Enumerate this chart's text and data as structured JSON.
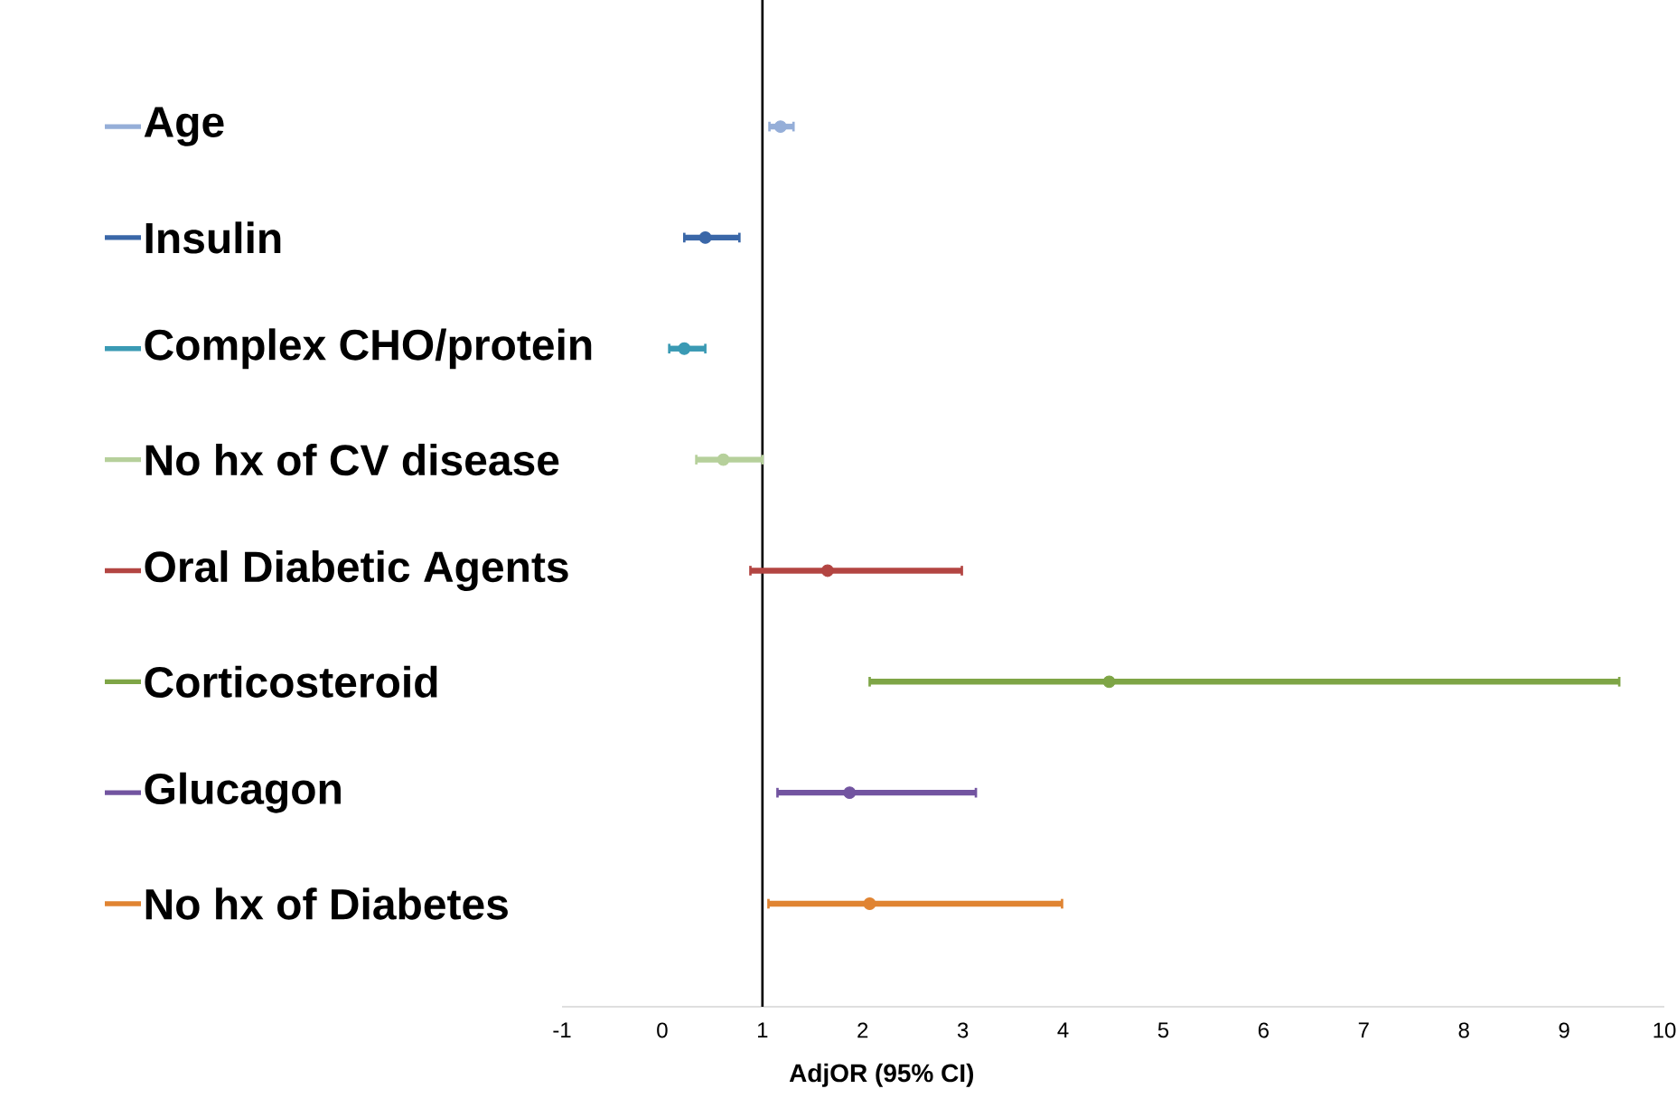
{
  "chart_data": {
    "type": "scatter",
    "orientation": "horizontal",
    "xlabel": "AdjOR (95% CI)",
    "categories": [
      "Age",
      "Insulin",
      "Complex CHO/protein",
      "No hx of CV disease",
      "Oral Diabetic Agents",
      "Corticosteroid",
      "Glucagon",
      "No hx of Diabetes"
    ],
    "values": [
      1.18,
      0.43,
      0.22,
      0.61,
      1.65,
      4.46,
      1.87,
      2.07
    ],
    "errors": [
      [
        1.07,
        1.31
      ],
      [
        0.22,
        0.77
      ],
      [
        0.07,
        0.43
      ],
      [
        0.34,
        1.0
      ],
      [
        0.88,
        2.99
      ],
      [
        2.07,
        9.55
      ],
      [
        1.15,
        3.13
      ],
      [
        1.06,
        3.99
      ]
    ],
    "colors": [
      "#95aed8",
      "#3a67a8",
      "#3a9ab4",
      "#b6d09b",
      "#b34542",
      "#7ea546",
      "#7254a0",
      "#e08432"
    ],
    "xlim": [
      -1,
      10
    ],
    "xticks": [
      -1,
      0,
      1,
      2,
      3,
      4,
      5,
      6,
      7,
      8,
      9,
      10
    ],
    "marker": "circle",
    "ref_lines": [
      {
        "axis": "x",
        "value": 1,
        "color": "#000000"
      }
    ]
  }
}
